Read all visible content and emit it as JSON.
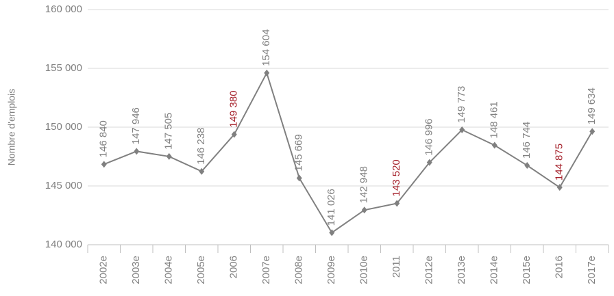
{
  "chart_data": {
    "type": "line",
    "ylabel": "Nombre d'emplois",
    "categories": [
      "2002e",
      "2003e",
      "2004e",
      "2005e",
      "2006",
      "2007e",
      "2008e",
      "2009e",
      "2010e",
      "2011",
      "2012e",
      "2013e",
      "2014e",
      "2015e",
      "2016",
      "2017e"
    ],
    "series": [
      {
        "name": null,
        "color": "#808080",
        "values": [
          146840,
          147946,
          147505,
          146238,
          149380,
          154604,
          145669,
          141026,
          142948,
          143520,
          146996,
          149773,
          148461,
          146744,
          144875,
          149634
        ],
        "value_labels": [
          "146 840",
          "147 946",
          "147 505",
          "146 238",
          "149 380",
          "154 604",
          "145 669",
          "141 026",
          "142 948",
          "143 520",
          "146 996",
          "149 773",
          "148 461",
          "146 744",
          "144 875",
          "149 634"
        ],
        "value_label_colors": [
          "#808080",
          "#808080",
          "#808080",
          "#808080",
          "#a5202a",
          "#808080",
          "#808080",
          "#808080",
          "#808080",
          "#a5202a",
          "#808080",
          "#808080",
          "#808080",
          "#808080",
          "#a5202a",
          "#808080"
        ]
      }
    ],
    "ylim": [
      140000,
      160000
    ],
    "yticks": [
      {
        "value": 140000,
        "label": "140 000"
      },
      {
        "value": 145000,
        "label": "145 000"
      },
      {
        "value": 150000,
        "label": "150 000"
      },
      {
        "value": 155000,
        "label": "155 000"
      },
      {
        "value": 160000,
        "label": "160 000"
      }
    ],
    "grid": true
  }
}
